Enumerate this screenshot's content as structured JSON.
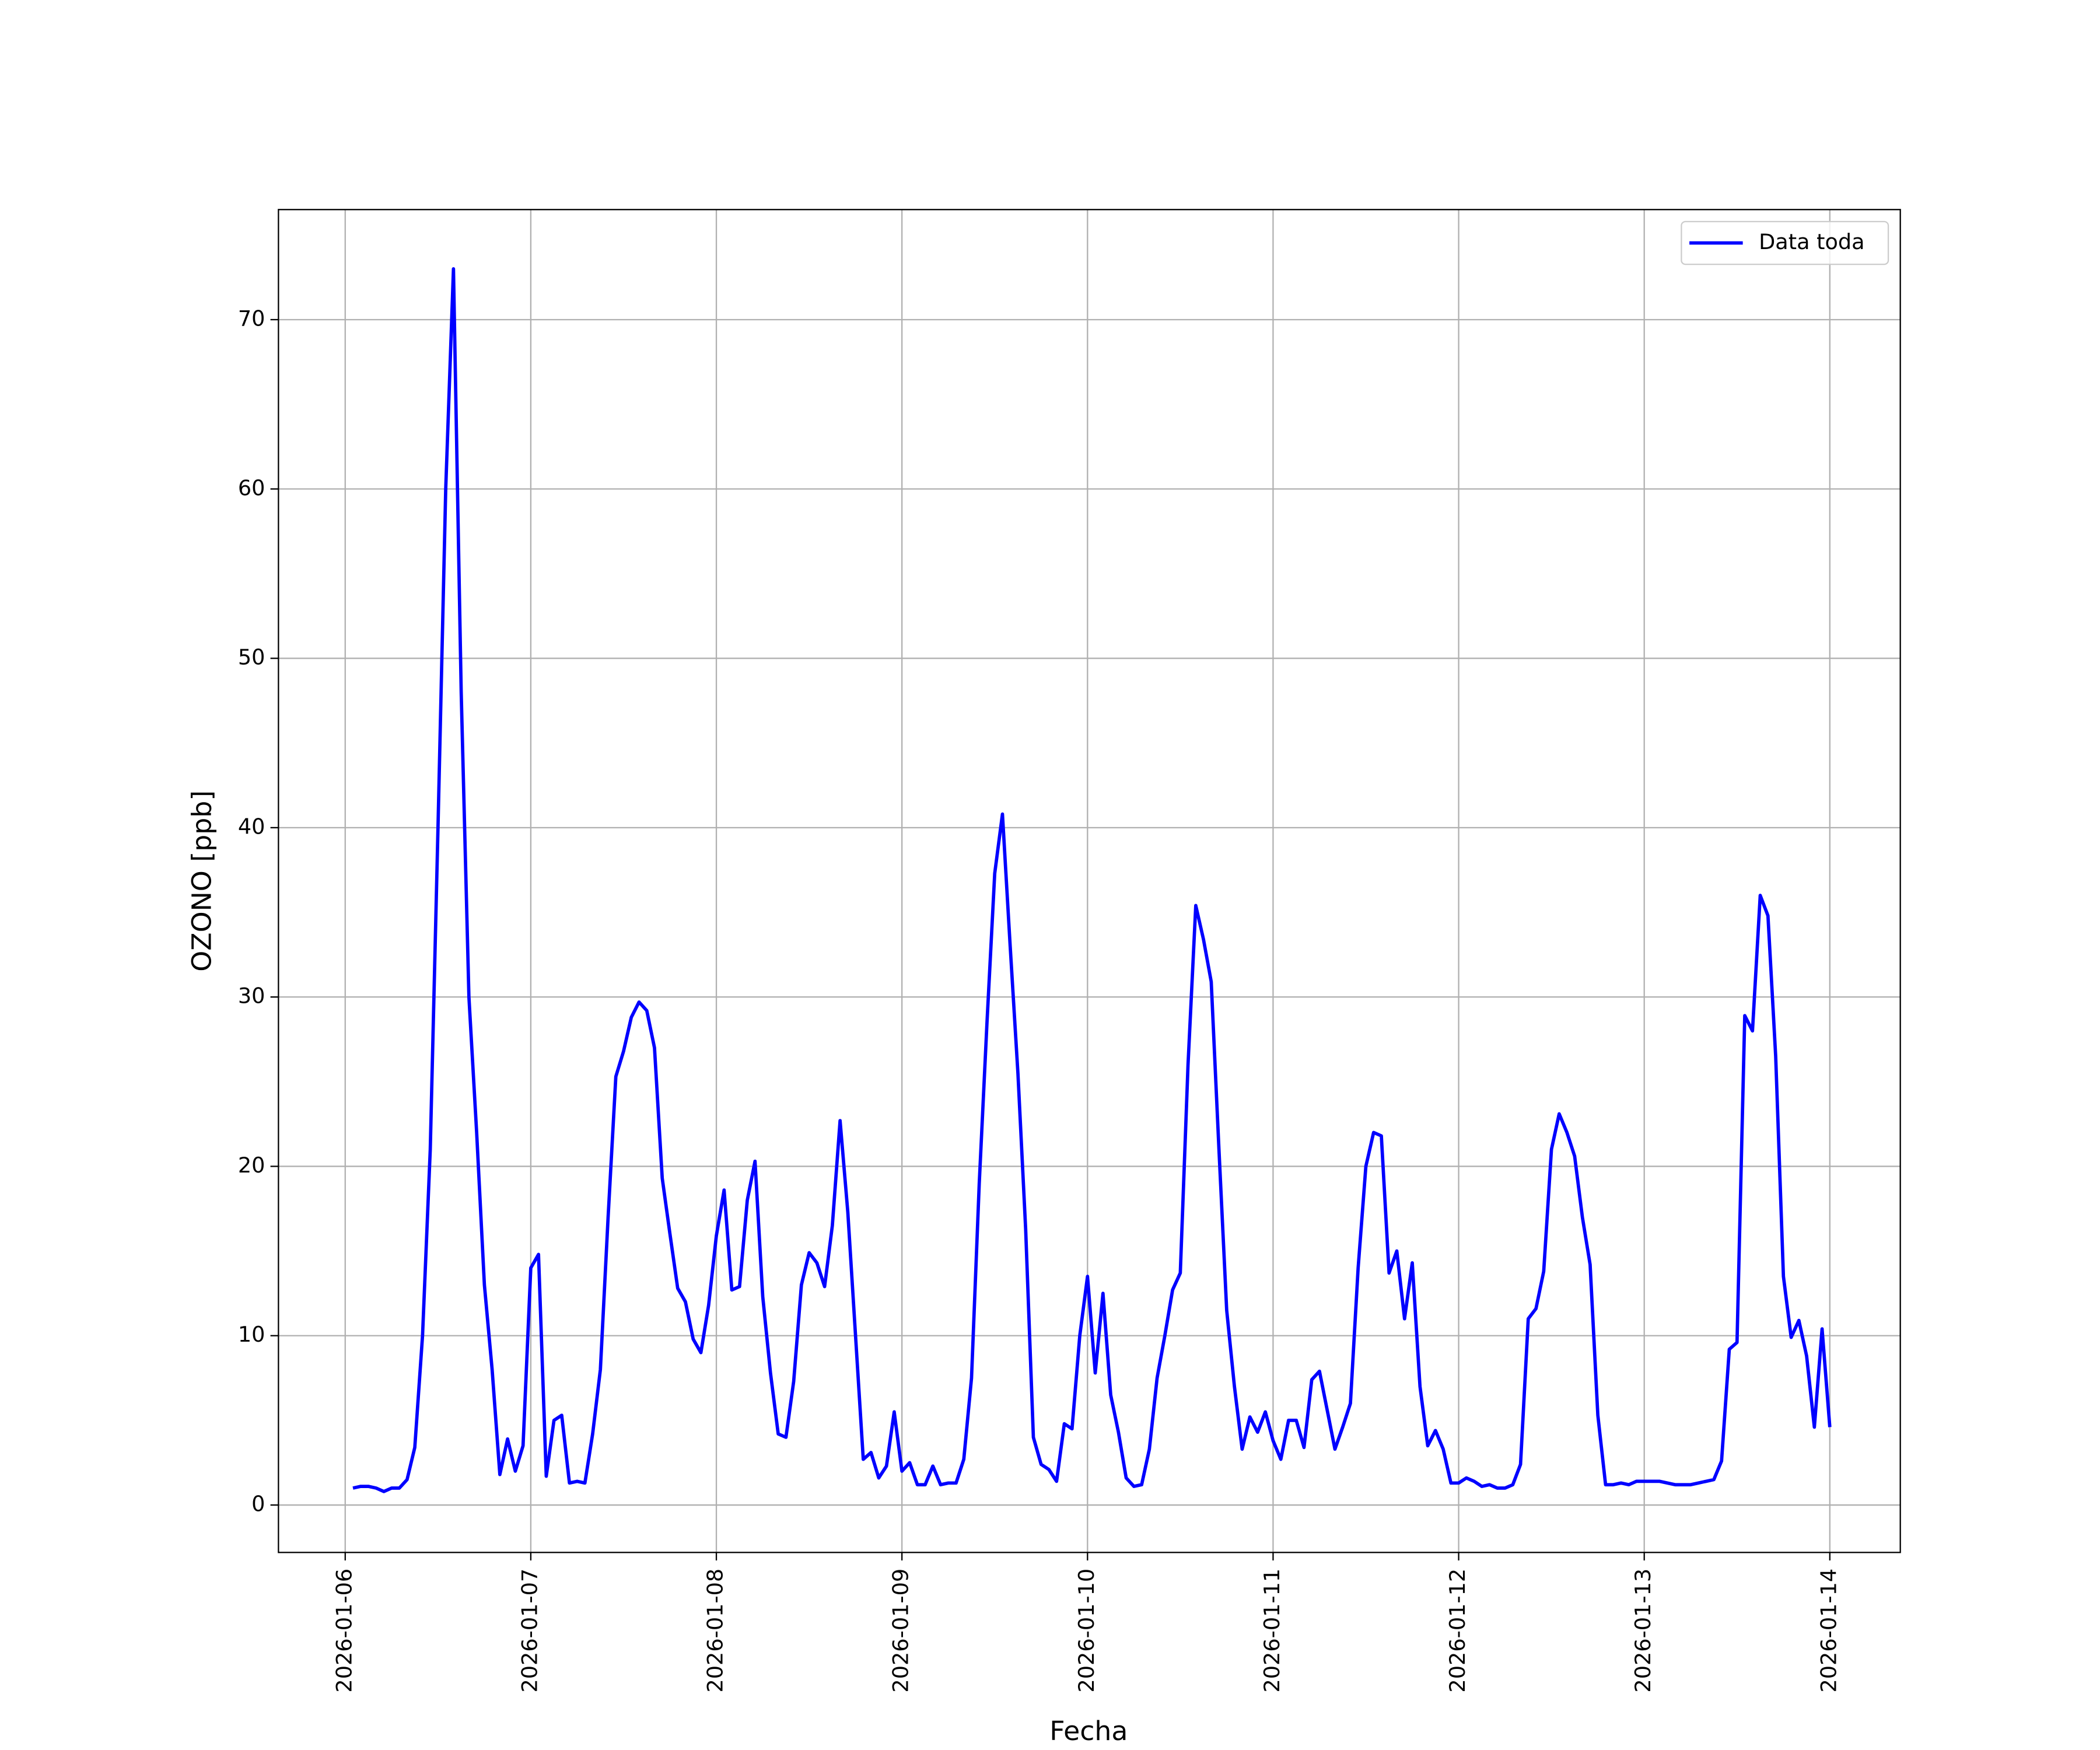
{
  "chart_data": {
    "type": "line",
    "x_label": "Fecha",
    "y_label": "OZONO [ppb]",
    "grid": true,
    "legend": "upper right",
    "xlim": [
      "2026-01-05 15:22",
      "2026-01-14 09:07"
    ],
    "xticks": [
      "2026-01-06",
      "2026-01-07",
      "2026-01-08",
      "2026-01-09",
      "2026-01-10",
      "2026-01-11",
      "2026-01-12",
      "2026-01-13",
      "2026-01-14"
    ],
    "ylim": [
      -2.8,
      76.5
    ],
    "yticks": [
      0,
      10,
      20,
      30,
      40,
      50,
      60,
      70
    ],
    "x": [
      "2026-01-06 01:00",
      "2026-01-06 02:00",
      "2026-01-06 03:00",
      "2026-01-06 04:00",
      "2026-01-06 05:00",
      "2026-01-06 06:00",
      "2026-01-06 07:00",
      "2026-01-06 08:00",
      "2026-01-06 09:00",
      "2026-01-06 10:00",
      "2026-01-06 11:00",
      "2026-01-06 12:00",
      "2026-01-06 13:00",
      "2026-01-06 14:00",
      "2026-01-06 15:00",
      "2026-01-06 16:00",
      "2026-01-06 17:00",
      "2026-01-06 18:00",
      "2026-01-06 19:00",
      "2026-01-06 20:00",
      "2026-01-06 21:00",
      "2026-01-06 22:00",
      "2026-01-06 23:00",
      "2026-01-07 00:00",
      "2026-01-07 01:00",
      "2026-01-07 02:00",
      "2026-01-07 03:00",
      "2026-01-07 04:00",
      "2026-01-07 05:00",
      "2026-01-07 06:00",
      "2026-01-07 07:00",
      "2026-01-07 08:00",
      "2026-01-07 09:00",
      "2026-01-07 10:00",
      "2026-01-07 11:00",
      "2026-01-07 12:00",
      "2026-01-07 13:00",
      "2026-01-07 14:00",
      "2026-01-07 15:00",
      "2026-01-07 16:00",
      "2026-01-07 17:00",
      "2026-01-07 18:00",
      "2026-01-07 19:00",
      "2026-01-07 20:00",
      "2026-01-07 21:00",
      "2026-01-07 22:00",
      "2026-01-07 23:00",
      "2026-01-08 00:00",
      "2026-01-08 01:00",
      "2026-01-08 02:00",
      "2026-01-08 03:00",
      "2026-01-08 04:00",
      "2026-01-08 05:00",
      "2026-01-08 06:00",
      "2026-01-08 07:00",
      "2026-01-08 08:00",
      "2026-01-08 09:00",
      "2026-01-08 10:00",
      "2026-01-08 11:00",
      "2026-01-08 12:00",
      "2026-01-08 13:00",
      "2026-01-08 14:00",
      "2026-01-08 15:00",
      "2026-01-08 16:00",
      "2026-01-08 17:00",
      "2026-01-08 18:00",
      "2026-01-08 19:00",
      "2026-01-08 20:00",
      "2026-01-08 21:00",
      "2026-01-08 22:00",
      "2026-01-08 23:00",
      "2026-01-09 00:00",
      "2026-01-09 01:00",
      "2026-01-09 02:00",
      "2026-01-09 03:00",
      "2026-01-09 04:00",
      "2026-01-09 05:00",
      "2026-01-09 06:00",
      "2026-01-09 07:00",
      "2026-01-09 08:00",
      "2026-01-09 09:00",
      "2026-01-09 10:00",
      "2026-01-09 11:00",
      "2026-01-09 12:00",
      "2026-01-09 13:00",
      "2026-01-09 14:00",
      "2026-01-09 15:00",
      "2026-01-09 16:00",
      "2026-01-09 17:00",
      "2026-01-09 18:00",
      "2026-01-09 19:00",
      "2026-01-09 20:00",
      "2026-01-09 21:00",
      "2026-01-09 22:00",
      "2026-01-09 23:00",
      "2026-01-10 00:00",
      "2026-01-10 01:00",
      "2026-01-10 02:00",
      "2026-01-10 03:00",
      "2026-01-10 04:00",
      "2026-01-10 05:00",
      "2026-01-10 06:00",
      "2026-01-10 07:00",
      "2026-01-10 08:00",
      "2026-01-10 09:00",
      "2026-01-10 10:00",
      "2026-01-10 11:00",
      "2026-01-10 12:00",
      "2026-01-10 13:00",
      "2026-01-10 14:00",
      "2026-01-10 15:00",
      "2026-01-10 16:00",
      "2026-01-10 17:00",
      "2026-01-10 18:00",
      "2026-01-10 19:00",
      "2026-01-10 20:00",
      "2026-01-10 21:00",
      "2026-01-10 22:00",
      "2026-01-10 23:00",
      "2026-01-11 00:00",
      "2026-01-11 01:00",
      "2026-01-11 02:00",
      "2026-01-11 03:00",
      "2026-01-11 04:00",
      "2026-01-11 05:00",
      "2026-01-11 06:00",
      "2026-01-11 07:00",
      "2026-01-11 08:00",
      "2026-01-11 09:00",
      "2026-01-11 10:00",
      "2026-01-11 11:00",
      "2026-01-11 12:00",
      "2026-01-11 13:00",
      "2026-01-11 14:00",
      "2026-01-11 15:00",
      "2026-01-11 16:00",
      "2026-01-11 17:00",
      "2026-01-11 18:00",
      "2026-01-11 19:00",
      "2026-01-11 20:00",
      "2026-01-11 21:00",
      "2026-01-11 22:00",
      "2026-01-11 23:00",
      "2026-01-12 00:00",
      "2026-01-12 01:00",
      "2026-01-12 02:00",
      "2026-01-12 03:00",
      "2026-01-12 04:00",
      "2026-01-12 05:00",
      "2026-01-12 06:00",
      "2026-01-12 07:00",
      "2026-01-12 08:00",
      "2026-01-12 09:00",
      "2026-01-12 10:00",
      "2026-01-12 11:00",
      "2026-01-12 12:00",
      "2026-01-12 13:00",
      "2026-01-12 14:00",
      "2026-01-12 15:00",
      "2026-01-12 16:00",
      "2026-01-12 17:00",
      "2026-01-12 18:00",
      "2026-01-12 19:00",
      "2026-01-12 20:00",
      "2026-01-12 21:00",
      "2026-01-12 22:00",
      "2026-01-12 23:00",
      "2026-01-13 00:00",
      "2026-01-13 01:00",
      "2026-01-13 02:00",
      "2026-01-13 03:00",
      "2026-01-13 04:00",
      "2026-01-13 05:00",
      "2026-01-13 06:00",
      "2026-01-13 07:00",
      "2026-01-13 08:00",
      "2026-01-13 09:00",
      "2026-01-13 10:00",
      "2026-01-13 11:00",
      "2026-01-13 12:00",
      "2026-01-13 13:00",
      "2026-01-13 14:00",
      "2026-01-13 15:00",
      "2026-01-13 16:00",
      "2026-01-13 17:00",
      "2026-01-13 18:00",
      "2026-01-13 19:00",
      "2026-01-13 20:00",
      "2026-01-13 21:00",
      "2026-01-13 22:00",
      "2026-01-13 23:00",
      "2026-01-14 00:00"
    ],
    "series": [
      {
        "name": "Data toda",
        "color": "#0000ff",
        "values": [
          1.0,
          1.1,
          1.1,
          1.0,
          0.8,
          1.0,
          1.0,
          1.5,
          3.4,
          10,
          21,
          40,
          60,
          73,
          48,
          30,
          22,
          13,
          8,
          1.8,
          3.9,
          2.0,
          3.5,
          14,
          14.8,
          1.7,
          5.0,
          5.3,
          1.3,
          1.4,
          1.3,
          4.2,
          8,
          17,
          25.3,
          26.8,
          28.8,
          29.7,
          29.2,
          27,
          19.3,
          16,
          12.8,
          12,
          9.8,
          9.0,
          11.8,
          15.9,
          18.6,
          12.7,
          12.9,
          18,
          20.3,
          12.3,
          7.8,
          4.2,
          4.0,
          7.3,
          13,
          14.9,
          14.3,
          12.9,
          16.5,
          22.7,
          17.3,
          10,
          2.7,
          3.1,
          1.6,
          2.3,
          5.5,
          2.0,
          2.5,
          1.2,
          1.2,
          2.3,
          1.2,
          1.3,
          1.3,
          2.7,
          7.5,
          19,
          28.5,
          37.3,
          40.8,
          33,
          25.5,
          16.3,
          4.0,
          2.4,
          2.1,
          1.4,
          4.8,
          4.5,
          10,
          13.5,
          7.8,
          12.5,
          6.5,
          4.3,
          1.6,
          1.1,
          1.2,
          3.3,
          7.5,
          10,
          12.7,
          13.7,
          26,
          35.4,
          33.4,
          30.9,
          21,
          11.5,
          7.0,
          3.3,
          5.2,
          4.3,
          5.5,
          3.8,
          2.7,
          5,
          5,
          3.4,
          7.4,
          7.9,
          5.6,
          3.3,
          4.6,
          6.0,
          14,
          20,
          22,
          21.8,
          13.7,
          15,
          11,
          14.3,
          7,
          3.5,
          4.4,
          3.3,
          1.3,
          1.3,
          1.6,
          1.4,
          1.1,
          1.2,
          1.0,
          1.0,
          1.2,
          2.4,
          11,
          11.6,
          13.8,
          21,
          23.1,
          22,
          20.6,
          17,
          14.2,
          5.3,
          1.2,
          1.2,
          1.3,
          1.2,
          1.4,
          1.4,
          1.4,
          1.4,
          1.3,
          1.2,
          1.2,
          1.2,
          1.3,
          1.4,
          1.5,
          2.6,
          9.2,
          9.6,
          28.9,
          28,
          36,
          34.8,
          26.5,
          13.5,
          9.9,
          10.9,
          8.8,
          4.6,
          10.4,
          4.6
        ]
      }
    ]
  }
}
